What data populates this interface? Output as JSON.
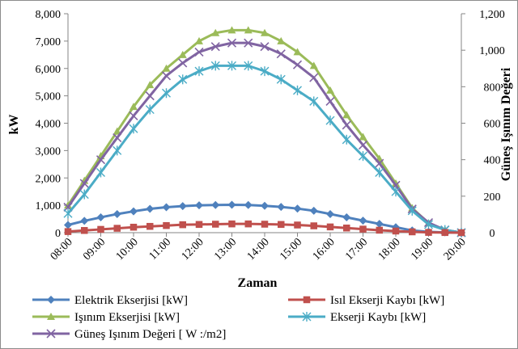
{
  "chart_data": {
    "type": "line",
    "title": "",
    "xlabel": "Zaman",
    "ylabel": "kW",
    "y2label": "Güneş Işınım Değeri",
    "ylim": [
      0,
      8000
    ],
    "y2lim": [
      0,
      1200
    ],
    "y_ticks": [
      "0",
      "1,000",
      "2,000",
      "3,000",
      "4,000",
      "5,000",
      "6,000",
      "7,000",
      "8,000"
    ],
    "y2_ticks": [
      "0",
      "200",
      "400",
      "600",
      "800",
      "1,000",
      "1,200"
    ],
    "x_tick_labels": [
      "08:00",
      "09:00",
      "10:00",
      "11:00",
      "12:00",
      "13:00",
      "14:00",
      "15:00",
      "16:00",
      "17:00",
      "18:00",
      "19:00",
      "20:00"
    ],
    "x": [
      8,
      8.5,
      9,
      9.5,
      10,
      10.5,
      11,
      11.5,
      12,
      12.5,
      13,
      13.5,
      14,
      14.5,
      15,
      15.5,
      16,
      16.5,
      17,
      17.5,
      18,
      18.5,
      19,
      19.5,
      20
    ],
    "grid": false,
    "legend_position": "bottom",
    "series": [
      {
        "name": "Elektrik Ekserjisi [kW]",
        "axis": "left",
        "color": "#4f81bd",
        "marker": "diamond",
        "values": [
          280,
          430,
          560,
          680,
          780,
          870,
          930,
          970,
          1000,
          1010,
          1020,
          1010,
          980,
          940,
          880,
          800,
          680,
          560,
          440,
          320,
          200,
          80,
          30,
          10,
          0
        ]
      },
      {
        "name": "Isıl Ekserji Kaybı [kW]",
        "axis": "left",
        "color": "#c0504d",
        "marker": "square",
        "values": [
          40,
          80,
          120,
          160,
          200,
          230,
          260,
          290,
          300,
          310,
          320,
          320,
          310,
          300,
          280,
          250,
          210,
          170,
          130,
          90,
          60,
          30,
          10,
          5,
          0
        ]
      },
      {
        "name": "Işınım Ekserjisi [kW]",
        "axis": "left",
        "color": "#9bbb59",
        "marker": "triangle",
        "values": [
          1000,
          1900,
          2800,
          3700,
          4600,
          5400,
          6000,
          6500,
          7000,
          7300,
          7400,
          7400,
          7300,
          7000,
          6600,
          6100,
          5200,
          4300,
          3500,
          2700,
          1800,
          900,
          350,
          100,
          0
        ]
      },
      {
        "name": "Ekserji Kaybı [kW]",
        "axis": "left",
        "color": "#4bacc6",
        "marker": "star",
        "values": [
          700,
          1400,
          2200,
          3000,
          3800,
          4500,
          5100,
          5600,
          5900,
          6100,
          6100,
          6100,
          5900,
          5600,
          5200,
          4800,
          4100,
          3400,
          2800,
          2200,
          1500,
          800,
          300,
          100,
          0
        ]
      },
      {
        "name": "Güneş Işınım Değeri [W/m2]",
        "legend_label": "Güneş Işınım Değeri [ W :/m2]",
        "axis": "right",
        "color": "#8064a2",
        "marker": "x",
        "values": [
          140,
          270,
          400,
          520,
          640,
          750,
          860,
          930,
          990,
          1020,
          1040,
          1040,
          1020,
          980,
          920,
          850,
          720,
          590,
          480,
          380,
          260,
          130,
          55,
          15,
          0
        ]
      }
    ]
  }
}
